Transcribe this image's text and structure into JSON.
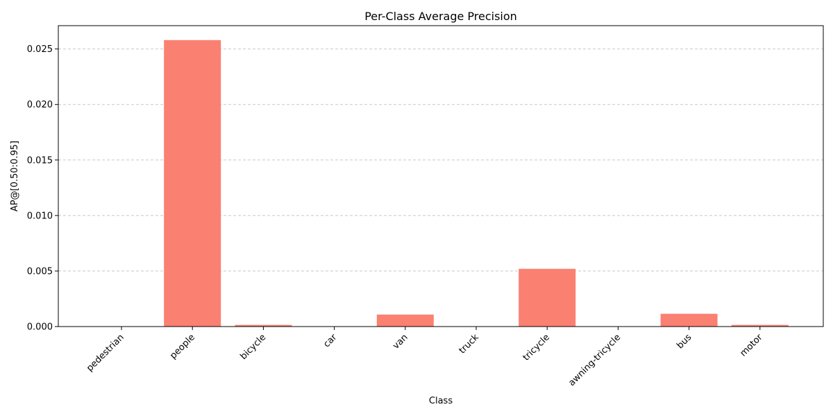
{
  "chart_data": {
    "type": "bar",
    "title": "Per-Class Average Precision",
    "xlabel": "Class",
    "ylabel": "AP@[0.50:0.95]",
    "categories": [
      "pedestrian",
      "people",
      "bicycle",
      "car",
      "van",
      "truck",
      "tricycle",
      "awning-tricycle",
      "bus",
      "motor"
    ],
    "values": [
      0.0,
      0.0258,
      0.00015,
      0.0,
      0.00108,
      0.0,
      0.0052,
      0.0,
      0.00115,
      0.00015
    ],
    "ylim": [
      0,
      0.0271
    ],
    "yticks": [
      0.0,
      0.005,
      0.01,
      0.015,
      0.02,
      0.025
    ],
    "ytick_labels": [
      "0.000",
      "0.005",
      "0.010",
      "0.015",
      "0.020",
      "0.025"
    ],
    "bar_color": "#fa8072",
    "grid": "y-dashed",
    "xtick_rotation_deg": 45
  }
}
